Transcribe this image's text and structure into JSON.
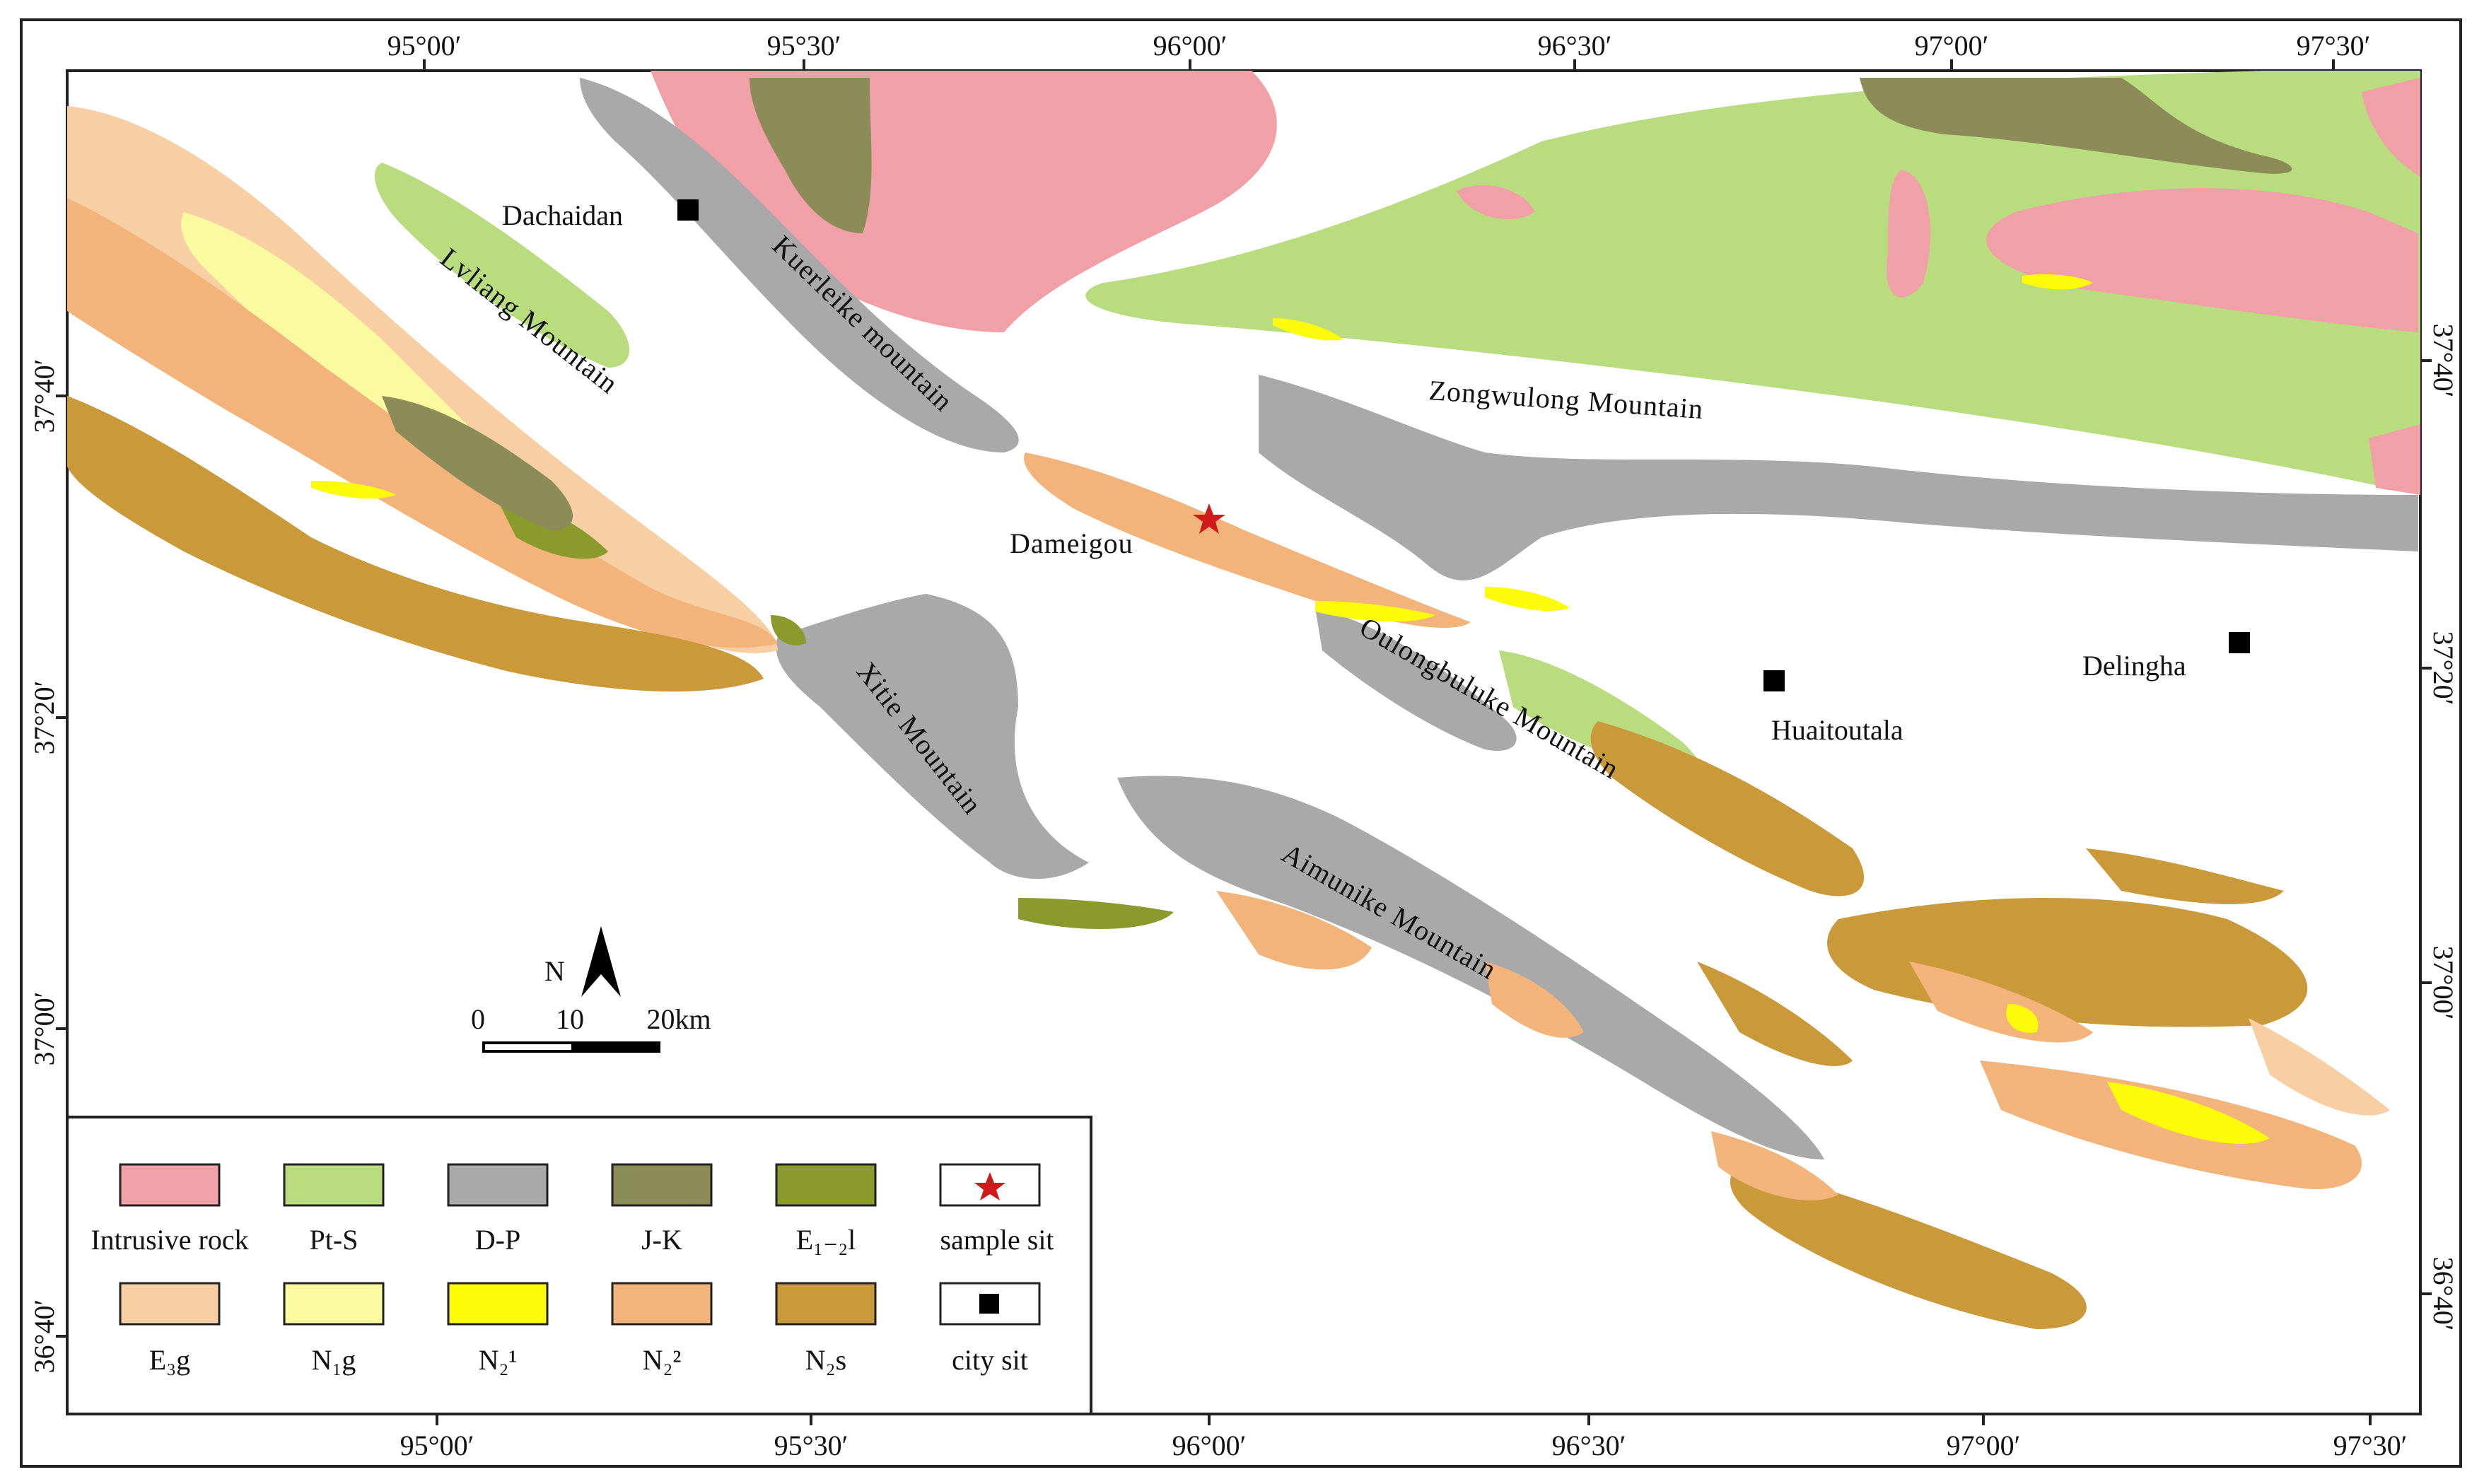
{
  "map": {
    "ticks_top": [
      "95°00′",
      "95°30′",
      "96°00′",
      "96°30′",
      "97°00′",
      "97°30′"
    ],
    "ticks_bottom": [
      "95°00′",
      "95°30′",
      "96°00′",
      "96°30′",
      "97°00′",
      "97°30′"
    ],
    "ticks_left": [
      "37°40′",
      "37°20′",
      "37°00′",
      "36°40′"
    ],
    "ticks_right": [
      "37°40′",
      "37°20′",
      "37°00′",
      "36°40′"
    ],
    "mountains": {
      "lvliang": "Lvliang Mountain",
      "kuerleike": "Kuerleike mountain",
      "zongwulong": "Zongwulong Mountain",
      "oulongbuluke": "Oulongbuluke Mountain",
      "xitie": "Xitie Mountain",
      "aimunike": "Aimunike Mountain"
    },
    "cities": {
      "dachaidan": "Dachaidan",
      "huaitoutala": "Huaitoutala",
      "delingha": "Delingha"
    },
    "sample_site": "Dameigou",
    "north_arrow": "N",
    "scale": {
      "zero": "0",
      "mid": "10",
      "end": "20km"
    },
    "colors": {
      "intrusive": "#f0a0a6",
      "pts": "#b8dc7e",
      "dp": "#a9a9a9",
      "jk": "#8c8c59",
      "e12l": "#8a9a2c",
      "e3g": "#f7cfa2",
      "n1g": "#fbfaa0",
      "n21": "#fbfb0a",
      "n22": "#f2b47a",
      "n2s": "#c9993a"
    }
  },
  "legend": {
    "row1": [
      {
        "label": "Intrusive rock",
        "color": "#f0a0a6"
      },
      {
        "label": "Pt-S",
        "color": "#b8dc7e"
      },
      {
        "label": "D-P",
        "color": "#a9a9a9"
      },
      {
        "label": "J-K",
        "color": "#8c8c59"
      },
      {
        "label": "E₁₋₂l",
        "color": "#8a9a2c"
      },
      {
        "label": "sample sit",
        "color": "#ffffff"
      }
    ],
    "row2": [
      {
        "label": "E₃g",
        "color": "#f7cfa2"
      },
      {
        "label": "N₁g",
        "color": "#fbfaa0"
      },
      {
        "label": "N₂¹",
        "color": "#fbfb0a"
      },
      {
        "label": "N₂²",
        "color": "#f2b47a"
      },
      {
        "label": "N₂s",
        "color": "#c9993a"
      },
      {
        "label": "city sit",
        "color": "#ffffff"
      }
    ]
  }
}
